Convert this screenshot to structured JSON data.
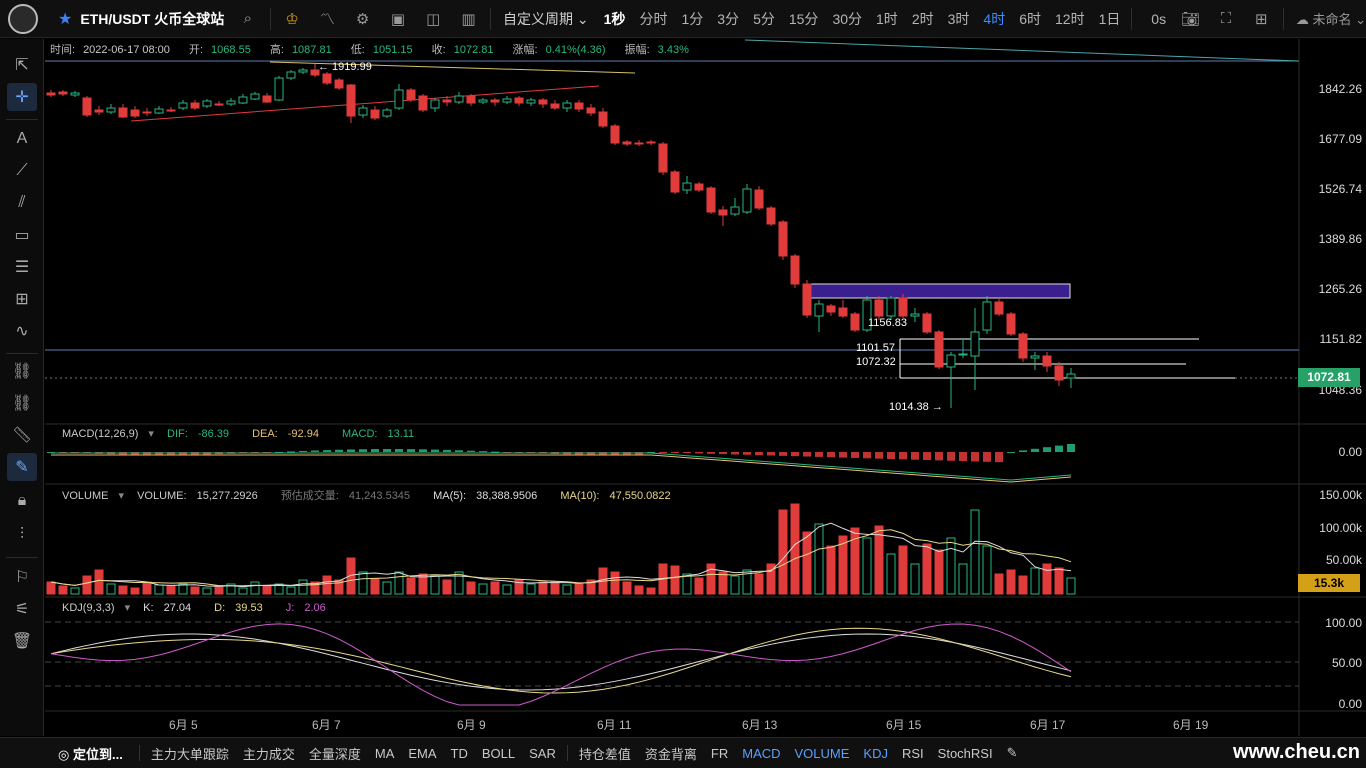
{
  "topbar": {
    "symbol": "ETH/USDT 火币全球站",
    "custom_period": "自定义周期",
    "periods": [
      "1秒",
      "分时",
      "1分",
      "3分",
      "5分",
      "15分",
      "30分",
      "1时",
      "2时",
      "3时",
      "4时",
      "6时",
      "12时",
      "1日"
    ],
    "active_period": "4时",
    "bold_period": "1秒",
    "countdown": "0s",
    "user": "未命名"
  },
  "infobar": {
    "time_label": "时间:",
    "time": "2022-06-17 08:00",
    "open_label": "开:",
    "open": "1068.55",
    "high_label": "高:",
    "high": "1087.81",
    "low_label": "低:",
    "low": "1051.15",
    "close_label": "收:",
    "close": "1072.81",
    "change_label": "涨幅:",
    "change": "0.41%(4.36)",
    "amp_label": "振幅:",
    "amp": "3.43%"
  },
  "price_axis": [
    "1842.26",
    "1677.09",
    "1526.74",
    "1389.86",
    "1265.26",
    "1151.82",
    "1048.36"
  ],
  "current_price": "1072.81",
  "annotations": {
    "high_marker": "← 1919.99",
    "low_marker": "1014.38 →",
    "level1": "1156.83",
    "level2": "1101.57",
    "level3": "1072.32"
  },
  "macd": {
    "name": "MACD(12,26,9)",
    "dif_label": "DIF:",
    "dif": "-86.39",
    "dea_label": "DEA:",
    "dea": "-92.94",
    "macd_label": "MACD:",
    "macd": "13.11",
    "axis": [
      "0.00"
    ]
  },
  "volume": {
    "name": "VOLUME",
    "vol_label": "VOLUME:",
    "vol": "15,277.2926",
    "est_label": "预估成交量:",
    "est": "41,243.5345",
    "ma5_label": "MA(5):",
    "ma5": "38,388.9506",
    "ma10_label": "MA(10):",
    "ma10": "47,550.0822",
    "axis": [
      "150.00k",
      "100.00k",
      "50.00k"
    ],
    "current": "15.3k"
  },
  "kdj": {
    "name": "KDJ(9,3,3)",
    "k_label": "K:",
    "k": "27.04",
    "d_label": "D:",
    "d": "39.53",
    "j_label": "J:",
    "j": "2.06",
    "axis": [
      "100.00",
      "50.00",
      "0.00"
    ]
  },
  "x_axis": [
    "6月 5",
    "6月 7",
    "6月 9",
    "6月 11",
    "6月 13",
    "6月 15",
    "6月 17",
    "6月 19"
  ],
  "bottombar": {
    "locate": "定位到...",
    "items": [
      "主力大单跟踪",
      "主力成交",
      "全量深度",
      "MA",
      "EMA",
      "TD",
      "BOLL",
      "SAR"
    ],
    "items2": [
      "持仓差值",
      "资金背离",
      "FR",
      "MACD",
      "VOLUME",
      "KDJ",
      "RSI",
      "StochRSI"
    ],
    "active": [
      "MACD",
      "VOLUME",
      "KDJ"
    ]
  },
  "watermark": "www.cheu.cn",
  "colors": {
    "up": "#26b884",
    "down": "#e03c3c",
    "accent": "#3b8cff",
    "box": "#3b1f8f"
  }
}
